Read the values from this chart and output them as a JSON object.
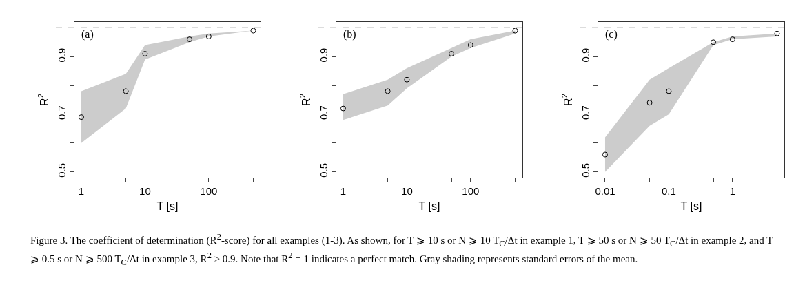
{
  "chart_data": [
    {
      "type": "scatter",
      "title": "(a)",
      "xlabel": "T [s]",
      "ylabel": "R$^{2}$",
      "log": "x",
      "marker": "circle",
      "x": [
        1,
        5,
        10,
        50,
        100,
        500
      ],
      "series": [
        {
          "color": "#000000",
          "values": [
            0.69,
            0.78,
            0.91,
            0.96,
            0.97,
            0.99
          ],
          "lower": [
            0.6,
            0.72,
            0.89,
            0.95,
            0.97,
            0.99
          ],
          "upper": [
            0.78,
            0.84,
            0.94,
            0.97,
            0.98,
            0.99
          ]
        }
      ],
      "xlim": [
        0.78,
        650
      ],
      "xticks": [
        1,
        {
          "value": 5,
          "label": null
        },
        10,
        {
          "value": 50,
          "label": null
        },
        100,
        {
          "value": 500,
          "label": null
        }
      ],
      "ylim": [
        0.48,
        1.02
      ],
      "yticks": [
        0.5,
        {
          "value": 0.6,
          "label": null
        },
        0.7,
        {
          "value": 0.8,
          "label": null
        },
        0.9,
        {
          "value": 1.0,
          "label": null
        }
      ],
      "ref_lines": [
        {
          "axis": "y",
          "value": 1,
          "line_style": "dashed",
          "color": "#000000"
        }
      ],
      "annotations": [
        "Figure 3. The coefficient of determination (R$^{2}$-score) for all examples (1-3). As shown, for T ⩾ 10 s or N ⩾ 10 T$_{C}$/Δt in example 1, T ⩾ 50 s or N ⩾ 50 T$_{C}$/Δt in example 2, and T ⩾ 0.5 s or N ⩾ 500 T$_{C}$/Δt in example 3, R$^{2}$ > 0.9. Note that R$^{2}$ = 1 indicates a perfect match. Gray shading represents standard errors of the mean."
      ]
    },
    {
      "type": "scatter",
      "title": "(b)",
      "xlabel": "T [s]",
      "ylabel": "R$^{2}$",
      "log": "x",
      "marker": "circle",
      "x": [
        1,
        5,
        10,
        50,
        100,
        500
      ],
      "series": [
        {
          "color": "#000000",
          "values": [
            0.72,
            0.78,
            0.82,
            0.91,
            0.94,
            0.99
          ],
          "lower": [
            0.68,
            0.73,
            0.79,
            0.9,
            0.93,
            0.98
          ],
          "upper": [
            0.77,
            0.82,
            0.86,
            0.93,
            0.96,
            0.99
          ]
        }
      ],
      "xlim": [
        0.78,
        650
      ],
      "xticks": [
        1,
        {
          "value": 5,
          "label": null
        },
        10,
        {
          "value": 50,
          "label": null
        },
        100,
        {
          "value": 500,
          "label": null
        }
      ],
      "ylim": [
        0.48,
        1.02
      ],
      "yticks": [
        0.5,
        {
          "value": 0.6,
          "label": null
        },
        0.7,
        {
          "value": 0.8,
          "label": null
        },
        0.9,
        {
          "value": 1.0,
          "label": null
        }
      ],
      "ref_lines": [
        {
          "axis": "y",
          "value": 1,
          "line_style": "dashed",
          "color": "#000000"
        }
      ]
    },
    {
      "type": "scatter",
      "title": "(c)",
      "xlabel": "T [s]",
      "ylabel": "R$^{2}$",
      "log": "x",
      "marker": "circle",
      "x": [
        0.01,
        0.05,
        0.1,
        0.5,
        1,
        5
      ],
      "series": [
        {
          "color": "#000000",
          "values": [
            0.56,
            0.74,
            0.78,
            0.95,
            0.96,
            0.98
          ],
          "lower": [
            0.5,
            0.66,
            0.7,
            0.94,
            0.96,
            0.97
          ],
          "upper": [
            0.62,
            0.82,
            0.86,
            0.95,
            0.97,
            0.98
          ]
        }
      ],
      "xlim": [
        0.0078,
        6.5
      ],
      "xticks": [
        0.01,
        {
          "value": 0.05,
          "label": null
        },
        0.1,
        {
          "value": 0.5,
          "label": null
        },
        1,
        {
          "value": 5,
          "label": null
        }
      ],
      "ylim": [
        0.48,
        1.02
      ],
      "yticks": [
        0.5,
        {
          "value": 0.6,
          "label": null
        },
        0.7,
        {
          "value": 0.8,
          "label": null
        },
        0.9,
        {
          "value": 1.0,
          "label": null
        }
      ],
      "ref_lines": [
        {
          "axis": "y",
          "value": 1,
          "line_style": "dashed",
          "color": "#000000"
        }
      ]
    }
  ]
}
